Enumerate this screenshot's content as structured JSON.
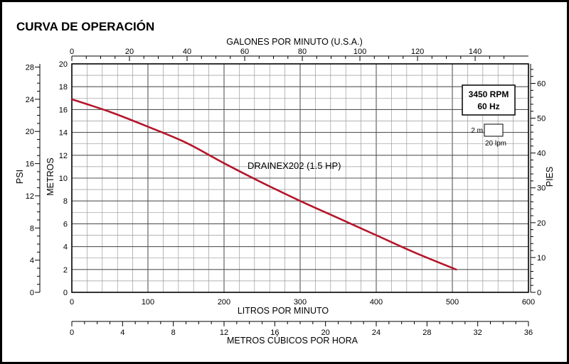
{
  "title": "CURVA DE OPERACIÓN",
  "chart_data": {
    "type": "line",
    "series": [
      {
        "name": "DRAINEX202 (1.5 HP)",
        "x": [
          0,
          50,
          100,
          150,
          200,
          250,
          300,
          350,
          400,
          450,
          505
        ],
        "y": [
          16.9,
          15.8,
          14.5,
          13.1,
          11.3,
          9.6,
          8.0,
          6.5,
          5.0,
          3.5,
          2.0
        ]
      }
    ],
    "color": "#b5162b",
    "axes": {
      "x_bottom": {
        "label": "LITROS POR MINUTO",
        "range": [
          0,
          600
        ],
        "ticks": [
          "0",
          "100",
          "200",
          "300",
          "400",
          "500",
          "600"
        ]
      },
      "x_top": {
        "label": "GALONES POR MINUTO (U.S.A.)",
        "range": [
          0,
          158.5
        ],
        "ticks": [
          "0",
          "20",
          "40",
          "60",
          "80",
          "100",
          "120",
          "140"
        ]
      },
      "x_extra": {
        "label": "METROS CÚBICOS POR HORA",
        "range": [
          0,
          36
        ],
        "ticks": [
          "0",
          "4",
          "8",
          "12",
          "16",
          "20",
          "24",
          "28",
          "32",
          "36"
        ]
      },
      "y_left": {
        "label": "METROS",
        "range": [
          0,
          20
        ],
        "ticks": [
          "0",
          "2",
          "4",
          "6",
          "8",
          "10",
          "12",
          "14",
          "16",
          "18",
          "20"
        ]
      },
      "y_far_left": {
        "label": "PSI",
        "range": [
          0,
          28.4
        ],
        "ticks": [
          "0",
          "4",
          "8",
          "12",
          "16",
          "20",
          "24",
          "28"
        ]
      },
      "y_right": {
        "label": "PIES",
        "range": [
          0,
          65.6
        ],
        "ticks": [
          "0",
          "10",
          "20",
          "30",
          "40",
          "50",
          "60"
        ]
      }
    },
    "grid": true
  },
  "info_box": {
    "line1": "3450 RPM",
    "line2": "60 Hz"
  },
  "scale_key": {
    "v_label": "2 m",
    "h_label": "20 lpm"
  }
}
